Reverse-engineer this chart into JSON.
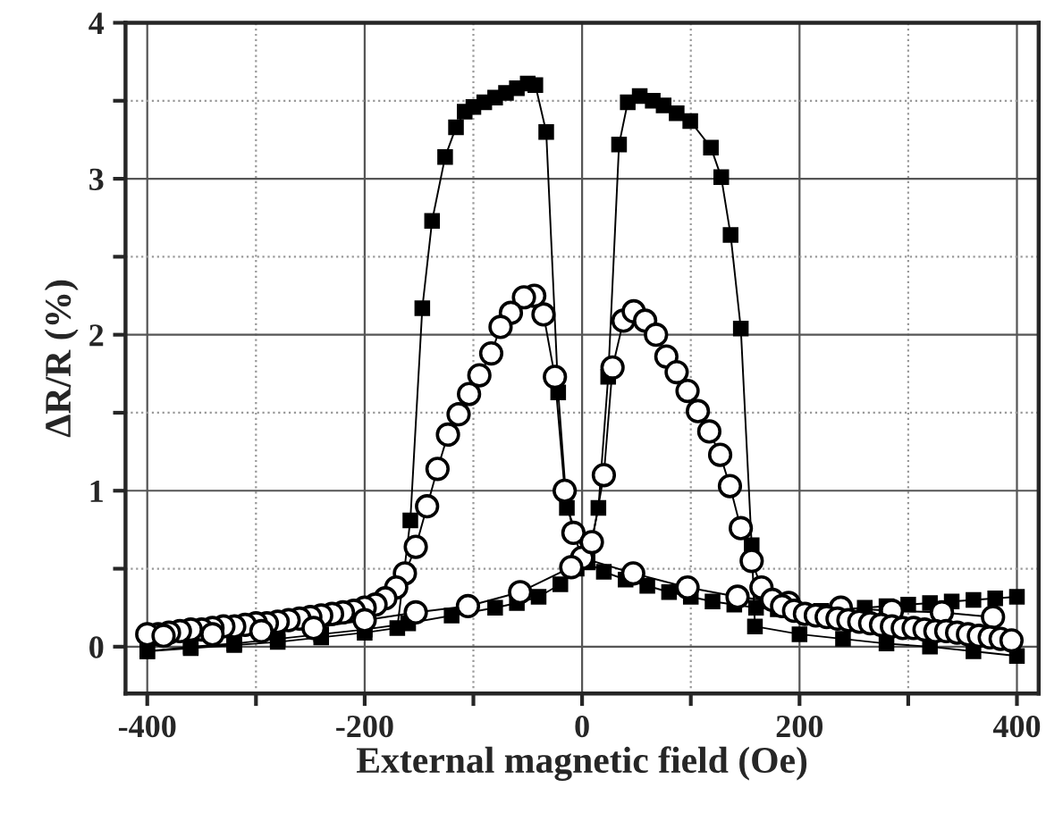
{
  "chart_data": {
    "type": "line",
    "xlabel": "External magnetic field (Oe)",
    "ylabel": "ΔR/R (%)",
    "xlim": [
      -420,
      420
    ],
    "ylim": [
      -0.3,
      4
    ],
    "xticks": [
      -400,
      {
        "value": -300,
        "label": null
      },
      -200,
      {
        "value": -100,
        "label": null
      },
      0,
      {
        "value": 100,
        "label": null
      },
      200,
      {
        "value": 300,
        "label": null
      },
      400
    ],
    "yticks": [
      0,
      {
        "value": 0.5,
        "label": null
      },
      1,
      {
        "value": 1.5,
        "label": null
      },
      2,
      {
        "value": 2.5,
        "label": null
      },
      3,
      {
        "value": 3.5,
        "label": null
      },
      4
    ],
    "grid": true,
    "legend": false,
    "line_style": "solid",
    "series": [
      {
        "color": "#000000",
        "marker": "square",
        "x": [
          400,
          380,
          360,
          340,
          320,
          300,
          280,
          260,
          240,
          220,
          200,
          180,
          160,
          140,
          120,
          100,
          80,
          60,
          40,
          20,
          5,
          -14,
          -22,
          -33,
          -43,
          -50,
          -60,
          -70,
          -80,
          -90,
          -100,
          -108,
          -116,
          -126,
          -138,
          -147,
          -158,
          -170,
          -200,
          -240,
          -280,
          -320,
          -360,
          -400,
          -400,
          -360,
          -320,
          -280,
          -240,
          -200,
          -160,
          -120,
          -80,
          -60,
          -40,
          -20,
          -5,
          5,
          15,
          24,
          34,
          42,
          53,
          65,
          75,
          87,
          99.5,
          118.5,
          128,
          136.6,
          146,
          156,
          159,
          200,
          240,
          280,
          320,
          360,
          400
        ],
        "values": [
          0.32,
          0.31,
          0.3,
          0.29,
          0.28,
          0.27,
          0.26,
          0.25,
          0.24,
          0.23,
          0.23,
          0.24,
          0.25,
          0.27,
          0.29,
          0.32,
          0.35,
          0.39,
          0.43,
          0.48,
          0.54,
          0.89,
          1.63,
          3.3,
          3.6,
          3.61,
          3.58,
          3.55,
          3.52,
          3.49,
          3.46,
          3.43,
          3.33,
          3.14,
          2.73,
          2.17,
          0.81,
          0.12,
          0.09,
          0.06,
          0.03,
          0.01,
          -0.01,
          -0.03,
          -0.03,
          0.0,
          0.02,
          0.05,
          0.08,
          0.11,
          0.15,
          0.2,
          0.25,
          0.28,
          0.32,
          0.4,
          0.5,
          0.55,
          0.89,
          1.73,
          3.22,
          3.49,
          3.53,
          3.5,
          3.47,
          3.42,
          3.37,
          3.2,
          3.01,
          2.64,
          2.04,
          0.65,
          0.13,
          0.08,
          0.05,
          0.02,
          0.0,
          -0.03,
          -0.06
        ]
      },
      {
        "color": "#000000",
        "marker": "circle",
        "x": [
          378,
          331,
          285,
          238,
          190,
          143,
          97,
          47,
          0,
          -8,
          -16,
          -25,
          -35.5,
          -44,
          -53.5,
          -65.5,
          -75,
          -83.6,
          -94.5,
          -104,
          -113.6,
          -123.4,
          -133,
          -142.6,
          -153,
          -163,
          -171,
          -181,
          -190,
          -200,
          -210,
          -220,
          -230,
          -240,
          -250,
          -260,
          -270,
          -280,
          -290,
          -300,
          -310,
          -320,
          -330,
          -340,
          -350,
          -360,
          -370,
          -380,
          -390,
          -400,
          -385,
          -340,
          -295,
          -247,
          -200,
          -153,
          -105,
          -57,
          -10,
          9,
          20,
          28,
          38,
          47.5,
          58,
          68,
          77.5,
          87,
          97,
          106.5,
          117,
          127,
          136,
          146,
          156,
          165,
          175,
          184,
          195,
          205,
          215,
          225,
          235,
          245,
          255,
          265,
          275,
          285,
          295,
          305,
          315,
          325,
          335,
          345,
          355,
          365,
          375,
          385,
          395
        ],
        "values": [
          0.19,
          0.22,
          0.23,
          0.25,
          0.28,
          0.32,
          0.38,
          0.47,
          0.57,
          0.73,
          1.0,
          1.73,
          2.13,
          2.25,
          2.24,
          2.14,
          2.05,
          1.88,
          1.74,
          1.62,
          1.49,
          1.36,
          1.14,
          0.9,
          0.64,
          0.47,
          0.38,
          0.31,
          0.27,
          0.25,
          0.23,
          0.22,
          0.21,
          0.2,
          0.19,
          0.18,
          0.17,
          0.16,
          0.15,
          0.15,
          0.14,
          0.13,
          0.13,
          0.12,
          0.11,
          0.11,
          0.1,
          0.09,
          0.08,
          0.08,
          0.07,
          0.08,
          0.1,
          0.12,
          0.17,
          0.22,
          0.26,
          0.35,
          0.51,
          0.67,
          1.1,
          1.79,
          2.09,
          2.15,
          2.09,
          2.0,
          1.86,
          1.76,
          1.64,
          1.51,
          1.38,
          1.23,
          1.03,
          0.76,
          0.55,
          0.38,
          0.3,
          0.26,
          0.23,
          0.21,
          0.2,
          0.19,
          0.18,
          0.17,
          0.16,
          0.15,
          0.14,
          0.13,
          0.12,
          0.12,
          0.11,
          0.1,
          0.1,
          0.09,
          0.08,
          0.07,
          0.06,
          0.05,
          0.04
        ]
      }
    ]
  }
}
